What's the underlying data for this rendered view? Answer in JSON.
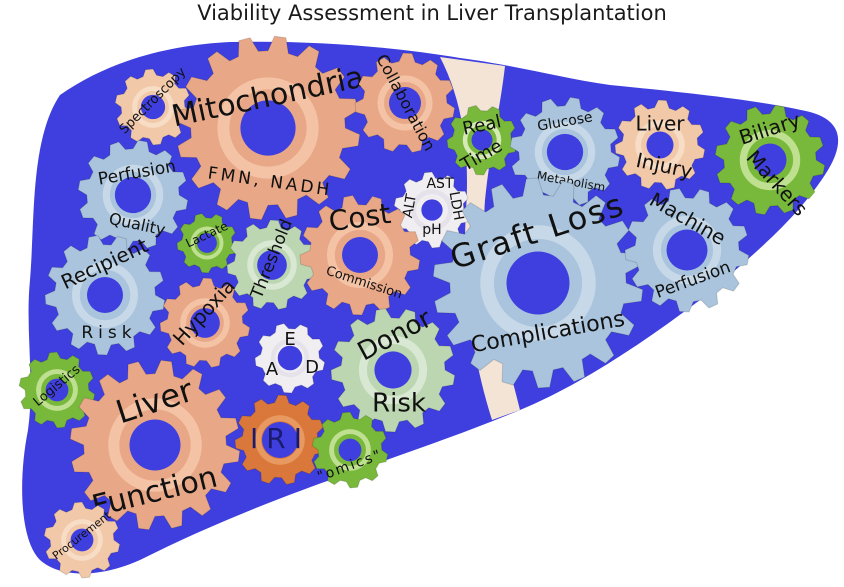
{
  "title": "Viability Assessment in Liver Transplantation",
  "gears": [
    {
      "lines": [
        "Spectroscopy"
      ]
    },
    {
      "lines": [
        "Mitochondria",
        "FMN, NADH"
      ]
    },
    {
      "lines": [
        "Collaboration"
      ]
    },
    {
      "lines": [
        "Real",
        "Time"
      ]
    },
    {
      "lines": [
        "Glucose",
        "Metabolism"
      ]
    },
    {
      "lines": [
        "Liver",
        "Injury"
      ]
    },
    {
      "lines": [
        "Biliary",
        "Markers"
      ]
    },
    {
      "lines": [
        "Perfusion",
        "Quality"
      ]
    },
    {
      "lines": [
        "Lactate"
      ]
    },
    {
      "lines": [
        "AST",
        "ALT",
        "LDH",
        "pH"
      ]
    },
    {
      "lines": [
        "Threshold"
      ]
    },
    {
      "lines": [
        "Cost",
        "Commission"
      ]
    },
    {
      "lines": [
        "Graft Loss",
        "Complications"
      ]
    },
    {
      "lines": [
        "Machine",
        "Perfusion"
      ]
    },
    {
      "lines": [
        "Recipient",
        "Risk"
      ]
    },
    {
      "lines": [
        "Hypoxia"
      ]
    },
    {
      "lines": [
        "E",
        "A",
        "D"
      ]
    },
    {
      "lines": [
        "Donor",
        "Risk"
      ]
    },
    {
      "lines": [
        "Logistics"
      ]
    },
    {
      "lines": [
        "Liver",
        "Function"
      ]
    },
    {
      "lines": [
        "IRI"
      ]
    },
    {
      "lines": [
        "\"omics\""
      ]
    },
    {
      "lines": [
        "Procurement"
      ]
    }
  ]
}
